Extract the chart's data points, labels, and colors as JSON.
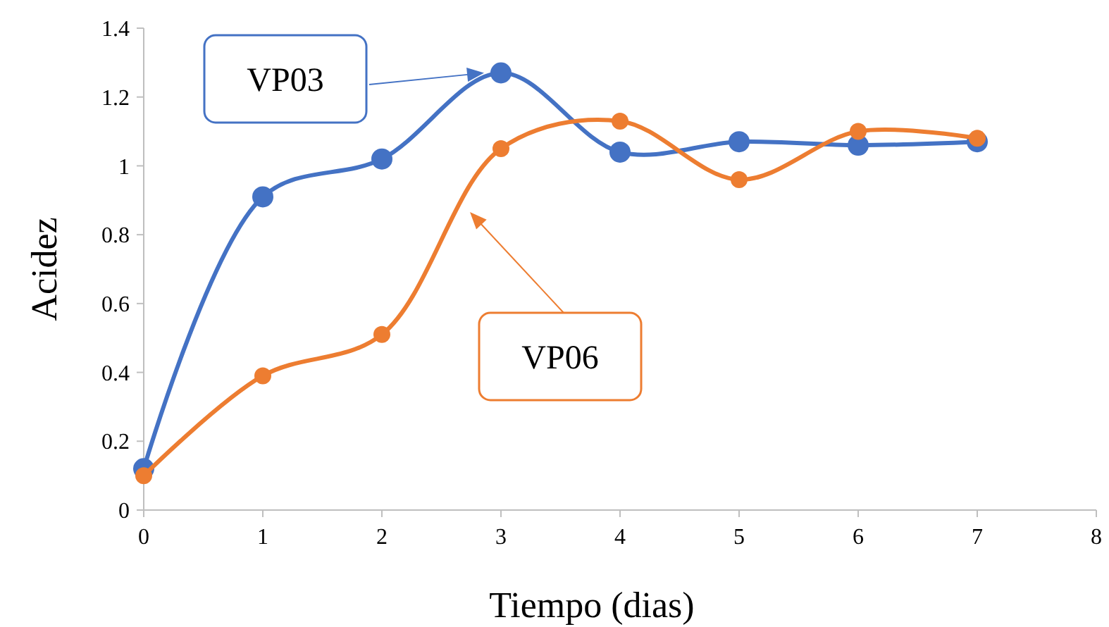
{
  "chart_data": {
    "type": "line",
    "xlabel": "Tiempo (dias)",
    "ylabel": "Acidez",
    "x": [
      0,
      1,
      2,
      3,
      4,
      5,
      6,
      7
    ],
    "series": [
      {
        "name": "VP03",
        "color": "#4472c4",
        "values": [
          0.12,
          0.91,
          1.02,
          1.27,
          1.04,
          1.07,
          1.06,
          1.07
        ]
      },
      {
        "name": "VP06",
        "color": "#ed7d31",
        "values": [
          0.1,
          0.39,
          0.51,
          1.05,
          1.13,
          0.96,
          1.1,
          1.08
        ]
      }
    ],
    "xlim": [
      0,
      8
    ],
    "xticks": [
      0,
      1,
      2,
      3,
      4,
      5,
      6,
      7,
      8
    ],
    "ylim": [
      0,
      1.4
    ],
    "yticks": [
      0,
      0.2,
      0.4,
      0.6,
      0.8,
      1,
      1.2,
      1.4
    ],
    "grid": false,
    "marker": "circle",
    "line_style": "solid"
  }
}
